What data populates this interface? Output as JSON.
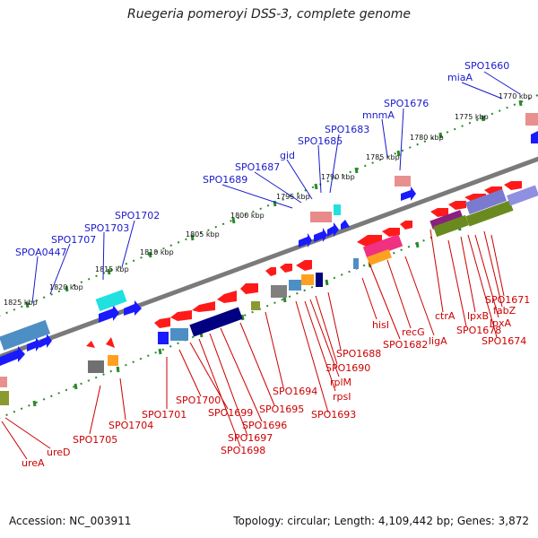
{
  "title": "Ruegeria pomeroyi DSS-3, complete genome",
  "footer": {
    "accession": "Accession: NC_003911",
    "topology": "Topology: circular; Length: 4,109,442 bp; Genes: 3,872"
  },
  "scale_labels": [
    "1770 kbp",
    "1775 kbp",
    "1780 kbp",
    "1785 kbp",
    "1790 kbp",
    "1795 kbp",
    "1800 kbp",
    "1805 kbp",
    "1810 kbp",
    "1815 kbp",
    "1820 kbp",
    "1825 kbp"
  ],
  "top_labels": [
    "SPO1660",
    "miaA",
    "SPO1676",
    "mnmA",
    "SPO1683",
    "SPO1685",
    "gid",
    "SPO1687",
    "SPO1689",
    "SPO1702",
    "SPO1703",
    "SPO1707",
    "SPOA0447"
  ],
  "bottom_labels": [
    "SPO1671",
    "fabZ",
    "lpxA",
    "SPO1674",
    "lpxB",
    "SPO1678",
    "ctrA",
    "ligA",
    "recG",
    "SPO1682",
    "hisI",
    "SPO1688",
    "SPO1690",
    "rplM",
    "rpsI",
    "SPO1693",
    "SPO1694",
    "SPO1695",
    "SPO1696",
    "SPO1697",
    "SPO1698",
    "SPO1699",
    "SPO1700",
    "SPO1701",
    "SPO1704",
    "SPO1705",
    "ureD",
    "ureA"
  ],
  "colors": {
    "top_label": "#1a1acc",
    "bottom_label": "#cc0000",
    "forward_gene": "#1a1aff",
    "reverse_gene": "#ff1a1a",
    "tick": "#2a8a2a",
    "backbone": "#808080"
  }
}
